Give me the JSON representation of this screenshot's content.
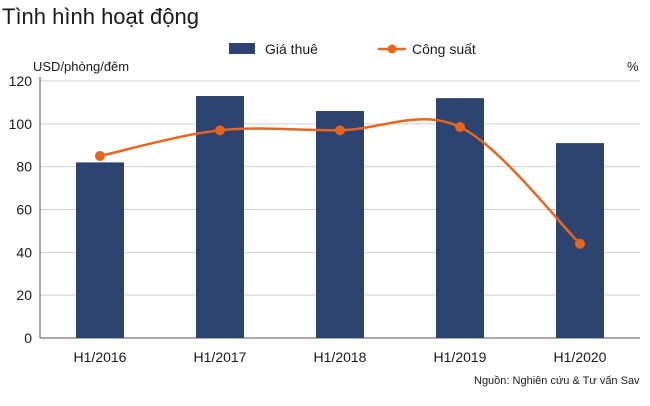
{
  "title": "Tình hình hoạt động",
  "y_left_unit": "USD/phòng/đêm",
  "y_right_unit": "%",
  "source": "Nguồn: Nghiên cứu & Tư vấn Sav",
  "colors": {
    "bar": "#2e4470",
    "line": "#e8651d",
    "grid": "#cfcfcf",
    "axis": "#555555"
  },
  "chart_data": {
    "type": "bar",
    "categories": [
      "H1/2016",
      "H1/2017",
      "H1/2018",
      "H1/2019",
      "H1/2020"
    ],
    "ylim": [
      0,
      120
    ],
    "yticks": [
      0,
      20,
      40,
      60,
      80,
      100,
      120
    ],
    "grid": true,
    "legend_position": "top-center",
    "series": [
      {
        "name": "Giá thuê",
        "type": "bar",
        "values": [
          82,
          113,
          106,
          112,
          91
        ]
      },
      {
        "name": "Công suất",
        "type": "line",
        "smooth": true,
        "values": [
          85,
          97,
          97,
          98.5,
          44
        ]
      }
    ]
  }
}
